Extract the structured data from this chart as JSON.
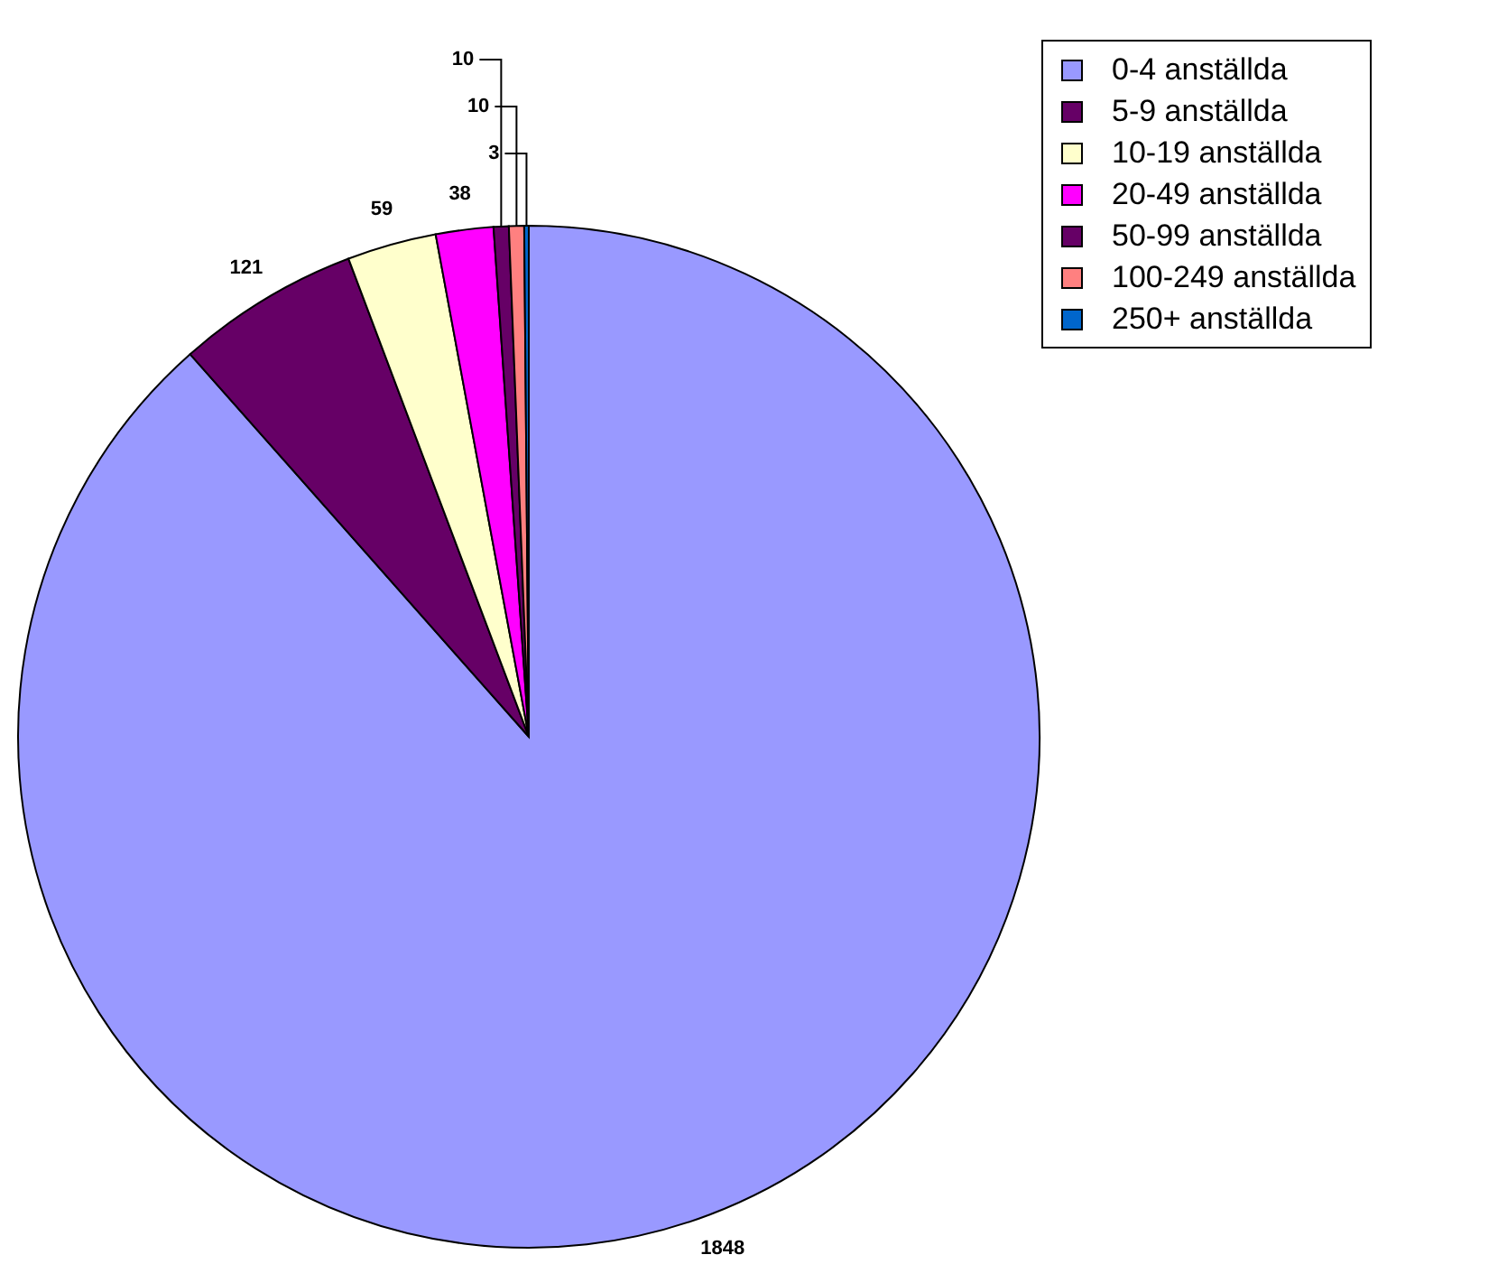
{
  "chart_data": {
    "type": "pie",
    "categories": [
      "0-4 anställda",
      "5-9 anställda",
      "10-19 anställda",
      "20-49 anställda",
      "50-99 anställda",
      "100-249 anställda",
      "250+ anställda"
    ],
    "values": [
      1848,
      121,
      59,
      38,
      10,
      10,
      3
    ],
    "colors": [
      "#9999ff",
      "#660066",
      "#ffffcc",
      "#ff00ff",
      "#660066",
      "#ff8080",
      "#0066cc"
    ],
    "data_labels": true,
    "legend": "top right"
  }
}
